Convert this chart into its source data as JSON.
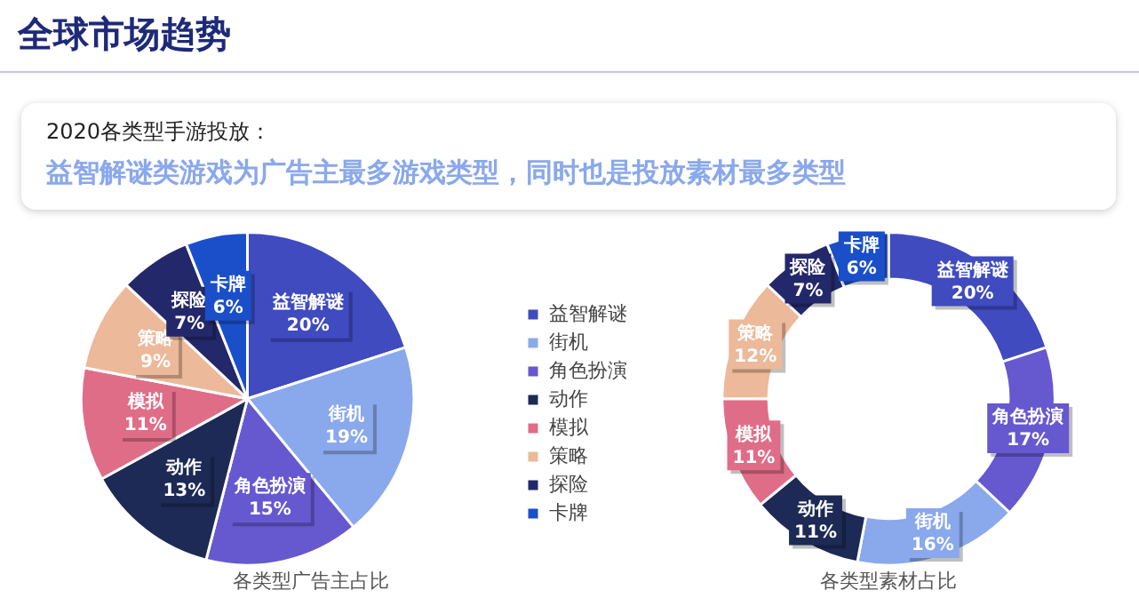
{
  "chart_data": [
    {
      "type": "pie",
      "title": "各类型广告主占比",
      "annotations": [
        "全球市场趋势",
        "2020各类型手游投放：",
        "益智解谜类游戏为广告主最多游戏类型，同时也是投放素材最多类型"
      ],
      "categories": [
        "益智解谜",
        "街机",
        "角色扮演",
        "动作",
        "模拟",
        "策略",
        "探险",
        "卡牌"
      ],
      "values": [
        20,
        19,
        15,
        13,
        11,
        9,
        7,
        6
      ],
      "value_labels": [
        "20%",
        "19%",
        "15%",
        "13%",
        "11%",
        "9%",
        "7%",
        "6%"
      ],
      "colors": [
        "#3f4bbf",
        "#8aa8ec",
        "#6658cf",
        "#1c2a55",
        "#e06d88",
        "#ecb99a",
        "#23286a",
        "#1a4fc9"
      ],
      "legend": "right"
    },
    {
      "type": "donut",
      "title": "各类型素材占比",
      "categories": [
        "益智解谜",
        "角色扮演",
        "街机",
        "动作",
        "模拟",
        "策略",
        "探险",
        "卡牌"
      ],
      "values": [
        20,
        17,
        16,
        11,
        11,
        12,
        7,
        6
      ],
      "value_labels": [
        "20%",
        "17%",
        "16%",
        "11%",
        "11%",
        "12%",
        "7%",
        "6%"
      ],
      "colors": [
        "#3f4bbf",
        "#6658cf",
        "#8aa8ec",
        "#1c2a55",
        "#e06d88",
        "#ecb99a",
        "#23286a",
        "#1a4fc9"
      ]
    }
  ]
}
